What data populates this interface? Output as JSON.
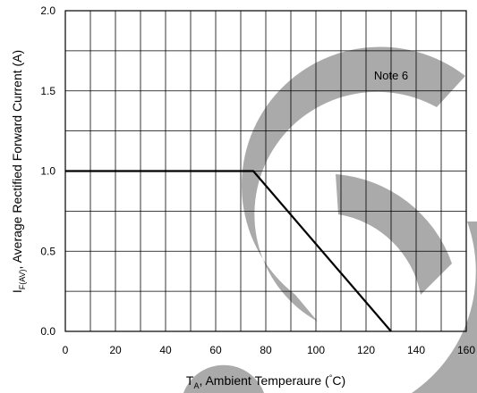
{
  "chart_data": {
    "type": "line",
    "title": "",
    "xlabel": {
      "main": "T",
      "subscript": "A",
      "rest": ", Ambient Temperaure (",
      "degree": "°",
      "unit_tail": "C)"
    },
    "ylabel": {
      "main": "I",
      "subscript": "F(AV)",
      "rest": ", Average Rectified Forward Current (A)"
    },
    "xlim": [
      0,
      160
    ],
    "ylim": [
      0,
      2.0
    ],
    "x_tick_labels": [
      "0",
      "20",
      "40",
      "60",
      "80",
      "100",
      "120",
      "140",
      "160"
    ],
    "y_tick_labels": [
      "0.0",
      "0.5",
      "1.0",
      "1.5",
      "2.0"
    ],
    "grid": true,
    "grid_x_step": 10,
    "grid_y_step": 0.25,
    "annotation": {
      "text": "Note 6",
      "x": 130,
      "y": 1.6
    },
    "series": [
      {
        "x": [
          0,
          75,
          130
        ],
        "y": [
          1.0,
          1.0,
          0.0
        ]
      }
    ]
  },
  "watermark": {
    "color": "#aaaaaa"
  }
}
